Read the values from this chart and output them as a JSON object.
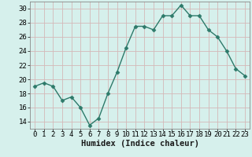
{
  "x": [
    0,
    1,
    2,
    3,
    4,
    5,
    6,
    7,
    8,
    9,
    10,
    11,
    12,
    13,
    14,
    15,
    16,
    17,
    18,
    19,
    20,
    21,
    22,
    23
  ],
  "y": [
    19,
    19.5,
    19,
    17,
    17.5,
    16,
    13.5,
    14.5,
    18,
    21,
    24.5,
    27.5,
    27.5,
    27,
    29,
    29,
    30.5,
    29,
    29,
    27,
    26,
    24,
    21.5,
    20.5
  ],
  "line_color": "#2d7a6a",
  "marker": "D",
  "marker_size": 2.5,
  "bg_color": "#d6f0ec",
  "grid_color": "#d4b8b8",
  "xlabel": "Humidex (Indice chaleur)",
  "ylabel": "",
  "xlim": [
    -0.5,
    23.5
  ],
  "ylim": [
    13,
    31
  ],
  "yticks": [
    14,
    16,
    18,
    20,
    22,
    24,
    26,
    28,
    30
  ],
  "xticks": [
    0,
    1,
    2,
    3,
    4,
    5,
    6,
    7,
    8,
    9,
    10,
    11,
    12,
    13,
    14,
    15,
    16,
    17,
    18,
    19,
    20,
    21,
    22,
    23
  ],
  "xlabel_fontsize": 7.5,
  "tick_fontsize": 6.5,
  "line_width": 1.0
}
